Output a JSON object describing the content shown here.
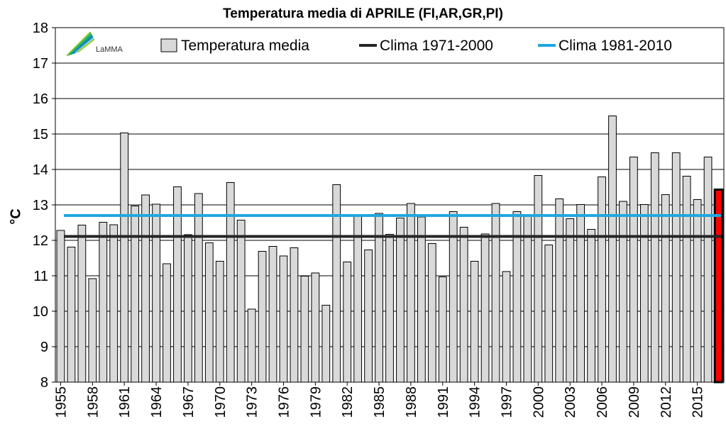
{
  "chart_data": {
    "type": "bar",
    "title": "Temperatura media di APRILE (FI,AR,GR,PI)",
    "xlabel": "",
    "ylabel": "°C",
    "ylim": [
      8,
      18
    ],
    "yticks": [
      8,
      9,
      10,
      11,
      12,
      13,
      14,
      15,
      16,
      17,
      18
    ],
    "grid": true,
    "legend_position": "top",
    "logo_text": "LaMMA",
    "categories": [
      "1955",
      "1956",
      "1957",
      "1958",
      "1959",
      "1960",
      "1961",
      "1962",
      "1963",
      "1964",
      "1965",
      "1966",
      "1967",
      "1968",
      "1969",
      "1970",
      "1971",
      "1972",
      "1973",
      "1974",
      "1975",
      "1976",
      "1977",
      "1978",
      "1979",
      "1980",
      "1981",
      "1982",
      "1983",
      "1984",
      "1985",
      "1986",
      "1987",
      "1988",
      "1989",
      "1990",
      "1991",
      "1992",
      "1993",
      "1994",
      "1995",
      "1996",
      "1997",
      "1998",
      "1999",
      "2000",
      "2001",
      "2002",
      "2003",
      "2004",
      "2005",
      "2006",
      "2007",
      "2008",
      "2009",
      "2010",
      "2011",
      "2012",
      "2013",
      "2014",
      "2015",
      "2016",
      "2017"
    ],
    "tick_labels": [
      "1955",
      "1958",
      "1961",
      "1964",
      "1967",
      "1970",
      "1973",
      "1976",
      "1979",
      "1982",
      "1985",
      "1988",
      "1991",
      "1994",
      "1997",
      "2000",
      "2003",
      "2006",
      "2009",
      "2012",
      "2015"
    ],
    "series": [
      {
        "name": "Temperatura media",
        "color": "#d9d9d9",
        "values": [
          12.28,
          11.81,
          12.43,
          10.92,
          12.51,
          12.44,
          15.03,
          12.97,
          13.28,
          13.02,
          11.34,
          13.51,
          12.16,
          13.32,
          11.93,
          11.41,
          13.63,
          12.57,
          10.06,
          11.69,
          11.83,
          11.56,
          11.79,
          10.99,
          11.08,
          10.17,
          13.57,
          11.39,
          12.69,
          11.73,
          12.76,
          12.17,
          12.63,
          13.04,
          12.66,
          11.91,
          10.97,
          12.81,
          12.37,
          11.41,
          12.18,
          13.04,
          11.12,
          12.81,
          12.73,
          13.83,
          11.87,
          13.17,
          12.61,
          13.01,
          12.31,
          13.79,
          15.51,
          13.1,
          14.35,
          13.01,
          14.47,
          13.29,
          14.47,
          13.81,
          13.15,
          14.35,
          13.43
        ],
        "highlight_last": true,
        "highlight_color": "#ff0000"
      },
      {
        "name": "Clima 1971-2000",
        "type": "line",
        "color": "#262626",
        "value": 12.11
      },
      {
        "name": "Clima 1981-2010",
        "type": "line",
        "color": "#1ea7e1",
        "value": 12.7
      }
    ]
  }
}
